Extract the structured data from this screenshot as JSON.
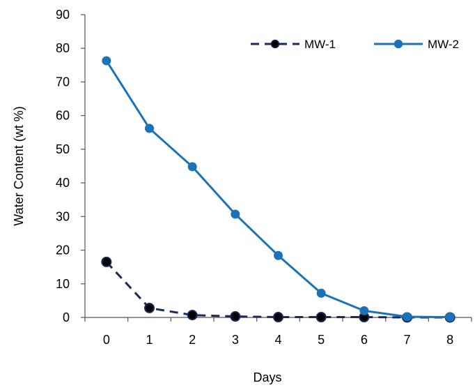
{
  "chart_data": {
    "type": "line",
    "title": "",
    "xlabel": "Days",
    "ylabel": "Water Content (wt %)",
    "x": [
      0,
      1,
      2,
      3,
      4,
      5,
      6,
      7,
      8
    ],
    "xlim": [
      -0.5,
      8.5
    ],
    "ylim": [
      0,
      90
    ],
    "yticks": [
      0,
      10,
      20,
      30,
      40,
      50,
      60,
      70,
      80,
      90
    ],
    "grid": false,
    "legend_position": "top-right",
    "series": [
      {
        "name": "MW-1",
        "color": "#1a2a5e",
        "line_style": "dashed",
        "marker": "circle-black",
        "x": [
          0,
          1,
          2,
          3,
          4,
          5,
          6,
          7,
          8
        ],
        "values": [
          16.5,
          2.8,
          0.7,
          0.3,
          0.1,
          0.1,
          0.1,
          0.0,
          0.0
        ]
      },
      {
        "name": "MW-2",
        "color": "#1a73b8",
        "line_style": "solid",
        "marker": "circle-filled",
        "x": [
          0,
          1,
          2,
          3,
          4,
          5,
          6,
          7,
          8
        ],
        "values": [
          76.3,
          56.2,
          44.8,
          30.7,
          18.4,
          7.2,
          2.0,
          0.2,
          0.1
        ]
      }
    ]
  }
}
